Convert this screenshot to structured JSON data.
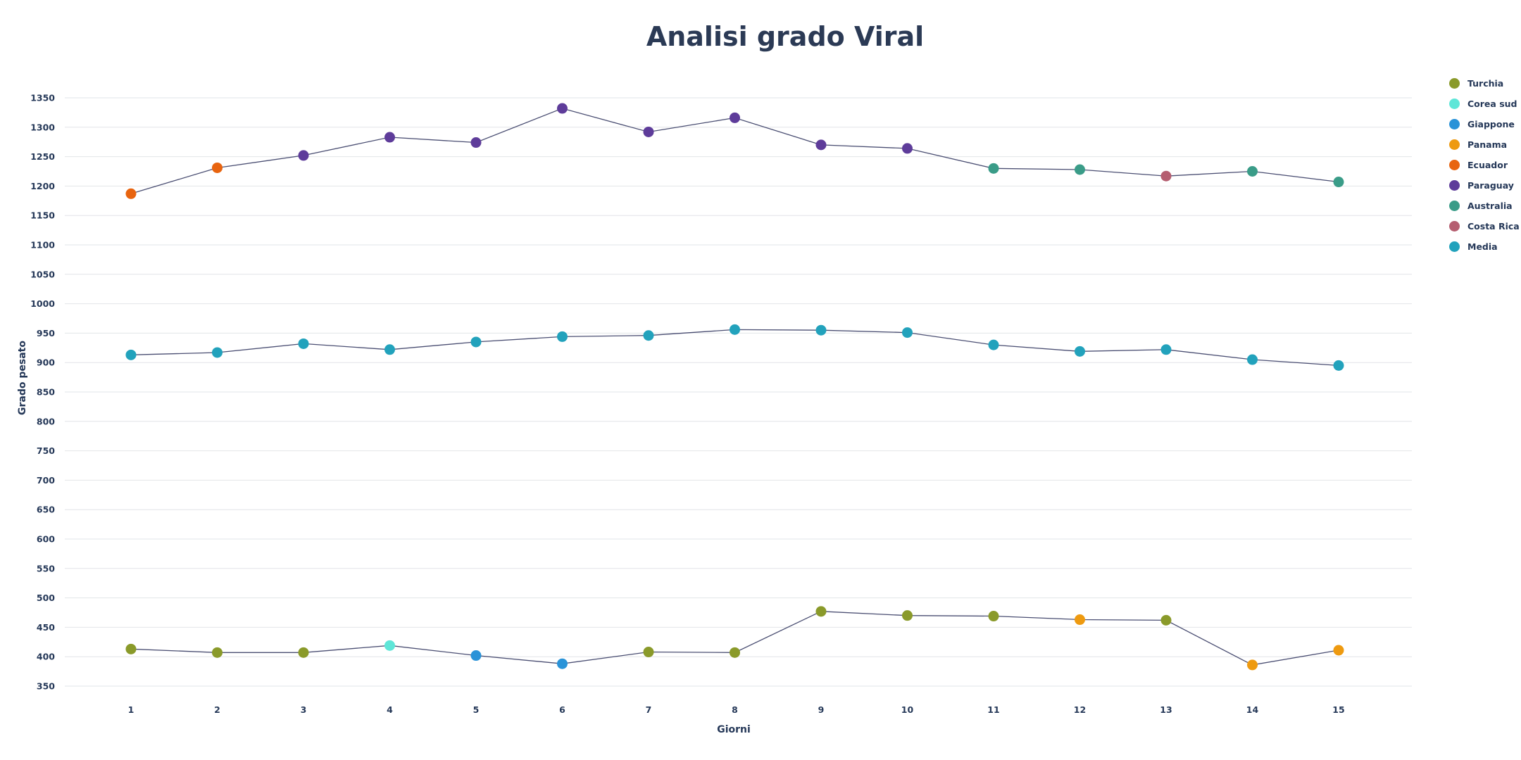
{
  "chart_data": {
    "type": "line",
    "title": "Analisi grado Viral",
    "xlabel": "Giorni",
    "ylabel": "Grado pesato",
    "x": [
      1,
      2,
      3,
      4,
      5,
      6,
      7,
      8,
      9,
      10,
      11,
      12,
      13,
      14,
      15
    ],
    "ylim": [
      340,
      1360
    ],
    "yticks": [
      350,
      400,
      450,
      500,
      550,
      600,
      650,
      700,
      750,
      800,
      850,
      900,
      950,
      1000,
      1050,
      1100,
      1150,
      1200,
      1250,
      1300,
      1350
    ],
    "grid": true,
    "legend_position": "right",
    "legend": [
      {
        "name": "Turchia",
        "color": "#8a9a2a"
      },
      {
        "name": "Corea sud",
        "color": "#5ee6d8"
      },
      {
        "name": "Giappone",
        "color": "#2a93d8"
      },
      {
        "name": "Panama",
        "color": "#ee9a10"
      },
      {
        "name": "Ecuador",
        "color": "#e8640f"
      },
      {
        "name": "Paraguay",
        "color": "#5e3c9a"
      },
      {
        "name": "Australia",
        "color": "#3a9c88"
      },
      {
        "name": "Costa Rica",
        "color": "#b55e70"
      },
      {
        "name": "Media",
        "color": "#22a2bc"
      }
    ],
    "series": [
      {
        "values": [
          1187,
          1231,
          1252,
          1283,
          1274,
          1332,
          1292,
          1316,
          1270,
          1264,
          1230,
          1228,
          1217,
          1225,
          1207
        ],
        "point_colors": [
          "Ecuador",
          "Ecuador",
          "Paraguay",
          "Paraguay",
          "Paraguay",
          "Paraguay",
          "Paraguay",
          "Paraguay",
          "Paraguay",
          "Paraguay",
          "Australia",
          "Australia",
          "Costa Rica",
          "Australia",
          "Australia"
        ]
      },
      {
        "values": [
          913,
          917,
          932,
          922,
          935,
          944,
          946,
          956,
          955,
          951,
          930,
          919,
          922,
          905,
          895
        ],
        "point_colors": [
          "Media",
          "Media",
          "Media",
          "Media",
          "Media",
          "Media",
          "Media",
          "Media",
          "Media",
          "Media",
          "Media",
          "Media",
          "Media",
          "Media",
          "Media"
        ]
      },
      {
        "values": [
          413,
          407,
          407,
          419,
          402,
          388,
          408,
          407,
          477,
          470,
          469,
          463,
          462,
          386,
          411
        ],
        "point_colors": [
          "Turchia",
          "Turchia",
          "Turchia",
          "Corea sud",
          "Giappone",
          "Giappone",
          "Turchia",
          "Turchia",
          "Turchia",
          "Turchia",
          "Turchia",
          "Panama",
          "Turchia",
          "Panama",
          "Panama"
        ]
      }
    ]
  }
}
